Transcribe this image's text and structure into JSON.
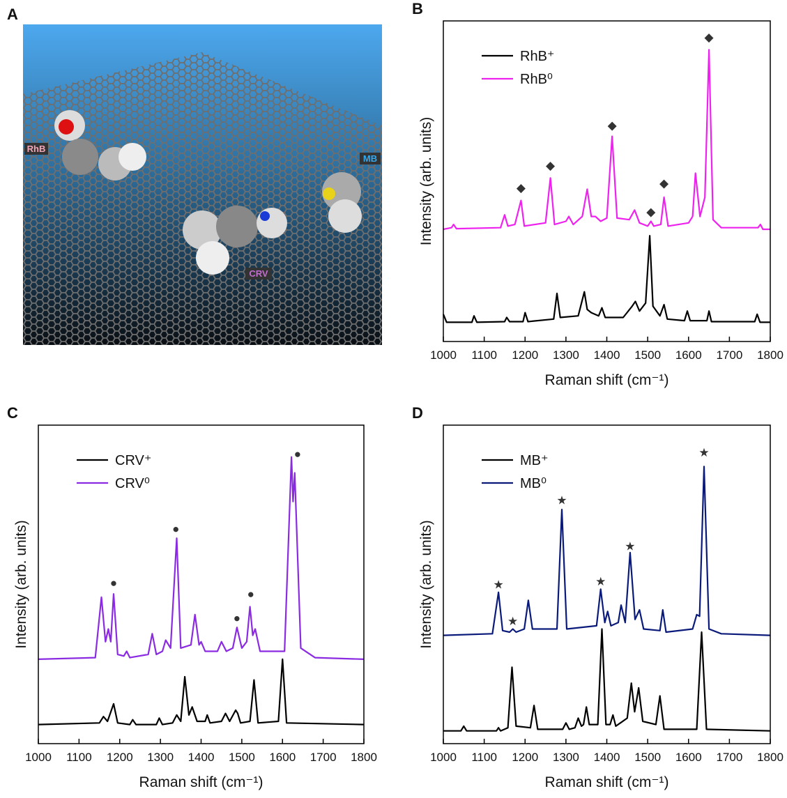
{
  "chart_data": [
    {
      "type": "image",
      "panel_label": "A",
      "labels": [
        "RhB",
        "MB",
        "CRV"
      ]
    },
    {
      "type": "line",
      "panel_label": "B",
      "xlabel": "Raman shift (cm⁻¹)",
      "ylabel": "Intensity (arb. units)",
      "xlim": [
        1000,
        1800
      ],
      "xticks": [
        1000,
        1100,
        1200,
        1300,
        1400,
        1500,
        1600,
        1700,
        1800
      ],
      "ylim": [
        0,
        10
      ],
      "legend": "upper left",
      "series": [
        {
          "name": "RhB⁺",
          "color": "#000000",
          "x": [
            1000,
            1008,
            1070,
            1075,
            1082,
            1150,
            1155,
            1162,
            1195,
            1200,
            1207,
            1270,
            1278,
            1286,
            1330,
            1345,
            1352,
            1362,
            1380,
            1388,
            1396,
            1440,
            1462,
            1470,
            1480,
            1495,
            1505,
            1513,
            1530,
            1540,
            1548,
            1590,
            1597,
            1604,
            1645,
            1650,
            1656,
            1762,
            1768,
            1775,
            1800
          ],
          "values": [
            0.85,
            0.6,
            0.6,
            0.8,
            0.6,
            0.62,
            0.75,
            0.62,
            0.62,
            0.9,
            0.62,
            0.7,
            1.5,
            0.75,
            0.8,
            1.55,
            1.0,
            0.9,
            0.8,
            1.05,
            0.75,
            0.75,
            1.1,
            1.25,
            0.95,
            1.2,
            3.3,
            1.1,
            0.8,
            1.15,
            0.7,
            0.65,
            0.95,
            0.65,
            0.65,
            0.95,
            0.62,
            0.62,
            0.85,
            0.6,
            0.6
          ]
        },
        {
          "name": "RhB⁰",
          "color": "#ee22ee",
          "x": [
            1000,
            1020,
            1025,
            1032,
            1140,
            1150,
            1158,
            1175,
            1190,
            1198,
            1250,
            1262,
            1272,
            1300,
            1307,
            1318,
            1340,
            1352,
            1362,
            1372,
            1385,
            1400,
            1413,
            1425,
            1455,
            1468,
            1480,
            1500,
            1508,
            1515,
            1532,
            1540,
            1550,
            1600,
            1610,
            1617,
            1628,
            1640,
            1650,
            1660,
            1680,
            1770,
            1776,
            1782,
            1800
          ],
          "values": [
            3.5,
            3.55,
            3.65,
            3.52,
            3.55,
            3.95,
            3.6,
            3.65,
            4.4,
            3.6,
            3.7,
            5.1,
            3.65,
            3.75,
            3.9,
            3.65,
            3.9,
            4.75,
            3.9,
            3.9,
            3.75,
            3.85,
            6.4,
            3.85,
            3.8,
            4.1,
            3.7,
            3.6,
            3.75,
            3.6,
            3.65,
            4.5,
            3.6,
            3.7,
            3.9,
            5.25,
            3.9,
            4.5,
            9.1,
            3.8,
            3.55,
            3.55,
            3.65,
            3.5,
            3.5
          ]
        }
      ],
      "markers": {
        "symbol": "◆",
        "color": "#333333",
        "x": [
          1190,
          1262,
          1413,
          1508,
          1540,
          1650
        ],
        "y": [
          4.8,
          5.5,
          6.75,
          4.05,
          4.95,
          9.5
        ]
      }
    },
    {
      "type": "line",
      "panel_label": "C",
      "xlabel": "Raman shift (cm⁻¹)",
      "ylabel": "Intensity (arb. units)",
      "xlim": [
        1000,
        1800
      ],
      "xticks": [
        1000,
        1100,
        1200,
        1300,
        1400,
        1500,
        1600,
        1700,
        1800
      ],
      "ylim": [
        0,
        10
      ],
      "legend": "upper left",
      "series": [
        {
          "name": "CRV⁺",
          "color": "#000000",
          "x": [
            1000,
            1150,
            1160,
            1170,
            1185,
            1195,
            1225,
            1232,
            1240,
            1290,
            1297,
            1305,
            1330,
            1340,
            1350,
            1360,
            1370,
            1378,
            1390,
            1410,
            1415,
            1422,
            1450,
            1460,
            1470,
            1485,
            1490,
            1497,
            1520,
            1530,
            1540,
            1590,
            1600,
            1610,
            1800
          ],
          "values": [
            0.6,
            0.65,
            0.85,
            0.7,
            1.25,
            0.65,
            0.6,
            0.75,
            0.6,
            0.6,
            0.8,
            0.6,
            0.65,
            0.9,
            0.7,
            2.1,
            0.9,
            1.15,
            0.7,
            0.7,
            0.9,
            0.65,
            0.7,
            0.95,
            0.7,
            1.05,
            0.95,
            0.65,
            0.7,
            2.0,
            0.65,
            0.7,
            2.65,
            0.65,
            0.6
          ]
        },
        {
          "name": "CRV⁰",
          "color": "#8a2be2",
          "x": [
            1000,
            1140,
            1155,
            1165,
            1172,
            1178,
            1185,
            1195,
            1210,
            1217,
            1225,
            1270,
            1280,
            1290,
            1305,
            1313,
            1325,
            1340,
            1350,
            1375,
            1385,
            1395,
            1400,
            1410,
            1440,
            1450,
            1462,
            1478,
            1488,
            1500,
            1512,
            1520,
            1527,
            1533,
            1545,
            1605,
            1622,
            1626,
            1630,
            1645,
            1680,
            1800
          ],
          "values": [
            2.65,
            2.7,
            4.6,
            3.2,
            3.6,
            3.2,
            4.7,
            2.8,
            2.75,
            2.9,
            2.7,
            2.8,
            3.45,
            2.8,
            2.9,
            3.25,
            3.0,
            6.45,
            3.0,
            3.1,
            4.05,
            3.1,
            3.2,
            2.9,
            2.9,
            3.2,
            2.9,
            3.0,
            3.65,
            3.0,
            3.2,
            4.3,
            3.4,
            3.6,
            2.9,
            2.9,
            9.0,
            7.6,
            8.5,
            3.0,
            2.7,
            2.65
          ]
        }
      ],
      "markers": {
        "symbol": "●",
        "color": "#333333",
        "x": [
          1185,
          1338,
          1488,
          1522,
          1637
        ],
        "y": [
          5.05,
          6.75,
          3.95,
          4.7,
          9.1
        ]
      }
    },
    {
      "type": "line",
      "panel_label": "D",
      "xlabel": "Raman shift (cm⁻¹)",
      "ylabel": "Intensity (arb. units)",
      "xlim": [
        1000,
        1800
      ],
      "xticks": [
        1000,
        1100,
        1200,
        1300,
        1400,
        1500,
        1600,
        1700,
        1800
      ],
      "ylim": [
        0,
        10
      ],
      "legend": "upper left",
      "series": [
        {
          "name": "MB⁺",
          "color": "#000000",
          "x": [
            1000,
            1043,
            1050,
            1057,
            1130,
            1135,
            1140,
            1158,
            1168,
            1178,
            1213,
            1222,
            1231,
            1292,
            1300,
            1308,
            1322,
            1330,
            1338,
            1343,
            1350,
            1357,
            1378,
            1388,
            1398,
            1408,
            1415,
            1422,
            1450,
            1460,
            1468,
            1478,
            1488,
            1520,
            1530,
            1540,
            1620,
            1632,
            1644,
            1800
          ],
          "values": [
            0.4,
            0.4,
            0.55,
            0.4,
            0.4,
            0.5,
            0.4,
            0.5,
            2.4,
            0.55,
            0.5,
            1.2,
            0.45,
            0.45,
            0.65,
            0.45,
            0.5,
            0.8,
            0.55,
            0.6,
            1.15,
            0.6,
            0.6,
            3.6,
            0.6,
            0.6,
            0.9,
            0.55,
            0.8,
            1.9,
            1.0,
            1.75,
            0.7,
            0.6,
            1.5,
            0.45,
            0.45,
            3.5,
            0.45,
            0.4
          ]
        },
        {
          "name": "MB⁰",
          "color": "#0a1a7a",
          "x": [
            1000,
            1120,
            1135,
            1145,
            1162,
            1170,
            1178,
            1198,
            1208,
            1218,
            1278,
            1290,
            1302,
            1375,
            1385,
            1395,
            1402,
            1410,
            1428,
            1435,
            1445,
            1457,
            1469,
            1480,
            1490,
            1530,
            1537,
            1545,
            1610,
            1620,
            1627,
            1638,
            1650,
            1680,
            1800
          ],
          "values": [
            3.4,
            3.45,
            4.75,
            3.55,
            3.5,
            3.6,
            3.5,
            3.6,
            4.5,
            3.6,
            3.6,
            7.35,
            3.6,
            3.7,
            4.85,
            3.8,
            4.15,
            3.7,
            3.8,
            4.35,
            3.8,
            6.0,
            3.9,
            4.2,
            3.6,
            3.55,
            4.2,
            3.5,
            3.6,
            4.05,
            4.0,
            8.7,
            3.6,
            3.45,
            3.4
          ]
        }
      ],
      "markers": {
        "symbol": "★",
        "color": "#333333",
        "x": [
          1135,
          1170,
          1290,
          1385,
          1457,
          1638
        ],
        "y": [
          5.0,
          3.85,
          7.65,
          5.1,
          6.2,
          9.15
        ]
      }
    }
  ]
}
